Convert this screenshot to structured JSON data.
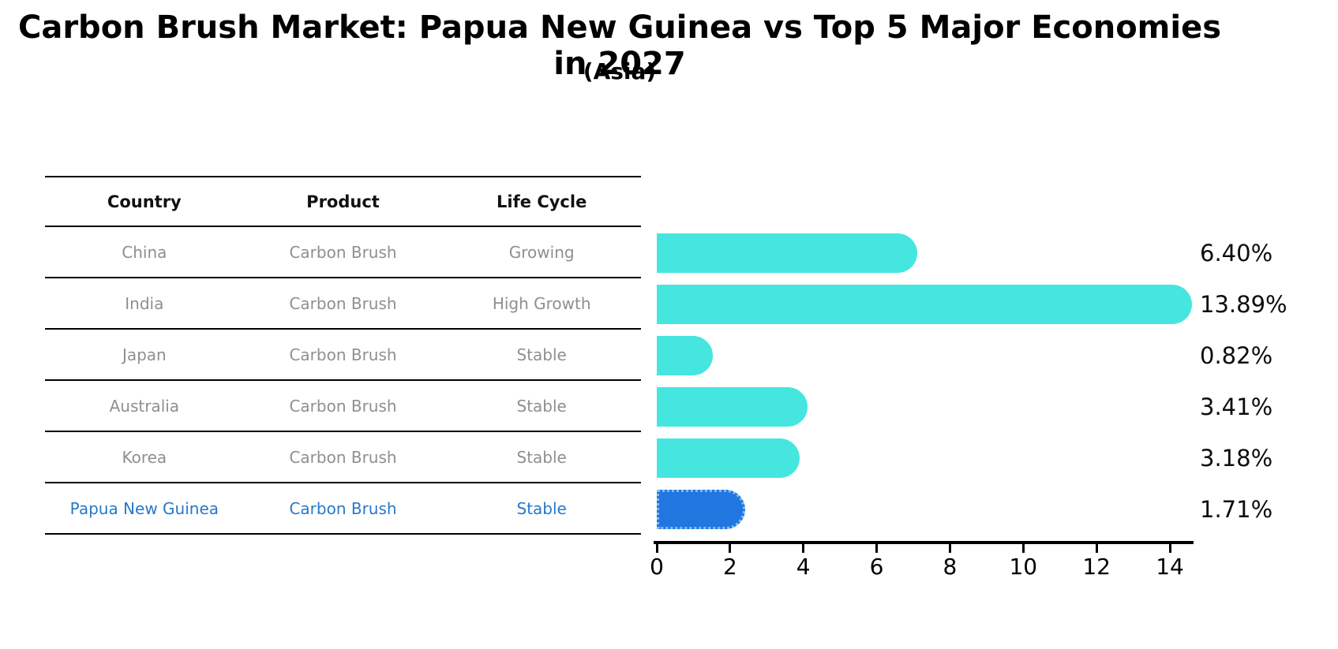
{
  "chart_data": {
    "type": "bar",
    "orientation": "horizontal",
    "title": "Carbon Brush Market: Papua New Guinea vs Top 5 Major Economies in 2027",
    "subtitle": "(Asia)",
    "categories": [
      "China",
      "India",
      "Japan",
      "Australia",
      "Korea",
      "Papua New Guinea"
    ],
    "values": [
      6.4,
      13.89,
      0.82,
      3.41,
      3.18,
      1.71
    ],
    "value_labels": [
      "6.40%",
      "13.89%",
      "0.82%",
      "3.41%",
      "3.18%",
      "1.71%"
    ],
    "highlight_index": 5,
    "xlabel": "",
    "ylabel": "",
    "xlim": [
      0,
      14
    ],
    "xticks": [
      0,
      2,
      4,
      6,
      8,
      10,
      12,
      14
    ],
    "grid": false,
    "legend": false,
    "bar_color": "#45E6E0",
    "highlight_bar_color": "#2176E0",
    "highlight_border_color": "#7FBCF5",
    "axis_color": "#000000",
    "value_label_color": "#0d0d0d"
  },
  "table": {
    "headers": [
      "Country",
      "Product",
      "Life Cycle"
    ],
    "rows": [
      {
        "country": "China",
        "product": "Carbon Brush",
        "life_cycle": "Growing",
        "highlight": false
      },
      {
        "country": "India",
        "product": "Carbon Brush",
        "life_cycle": "High Growth",
        "highlight": false
      },
      {
        "country": "Japan",
        "product": "Carbon Brush",
        "life_cycle": "Stable",
        "highlight": false
      },
      {
        "country": "Australia",
        "product": "Carbon Brush",
        "life_cycle": "Stable",
        "highlight": false
      },
      {
        "country": "Korea",
        "product": "Carbon Brush",
        "life_cycle": "Stable",
        "highlight": false
      },
      {
        "country": "Papua New Guinea",
        "product": "Carbon Brush",
        "life_cycle": "Stable",
        "highlight": true
      }
    ],
    "row_text_color": "#8F8F8F",
    "highlight_text_color": "#2878C8",
    "header_text_color": "#111111"
  }
}
